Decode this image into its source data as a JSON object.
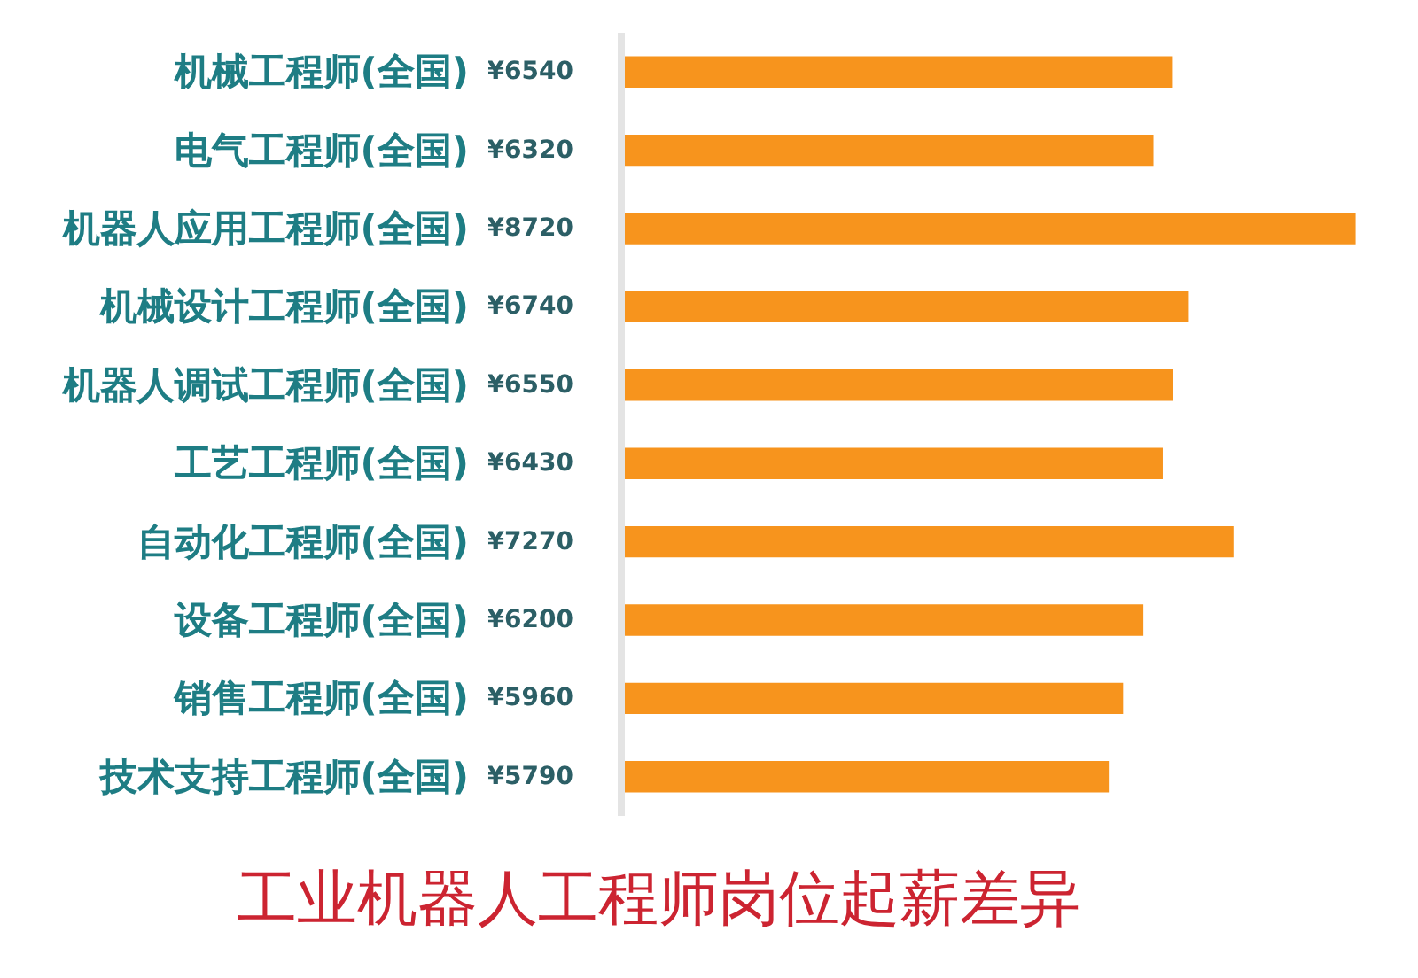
{
  "chart_data": {
    "type": "bar",
    "orientation": "horizontal",
    "title": "工业机器人工程师岗位起薪差异",
    "categories": [
      "机械工程师(全国)",
      "电气工程师(全国)",
      "机器人应用工程师(全国)",
      "机械设计工程师(全国)",
      "机器人调试工程师(全国)",
      "工艺工程师(全国)",
      "自动化工程师(全国)",
      "设备工程师(全国)",
      "销售工程师(全国)",
      "技术支持工程师(全国)"
    ],
    "values": [
      6540,
      6320,
      8720,
      6740,
      6550,
      6430,
      7270,
      6200,
      5960,
      5790
    ],
    "value_labels": [
      "¥6540",
      "¥6320",
      "¥8720",
      "¥6740",
      "¥6550",
      "¥6430",
      "¥7270",
      "¥6200",
      "¥5960",
      "¥5790"
    ],
    "color": "#f7941d",
    "tick_labels": "y"
  }
}
